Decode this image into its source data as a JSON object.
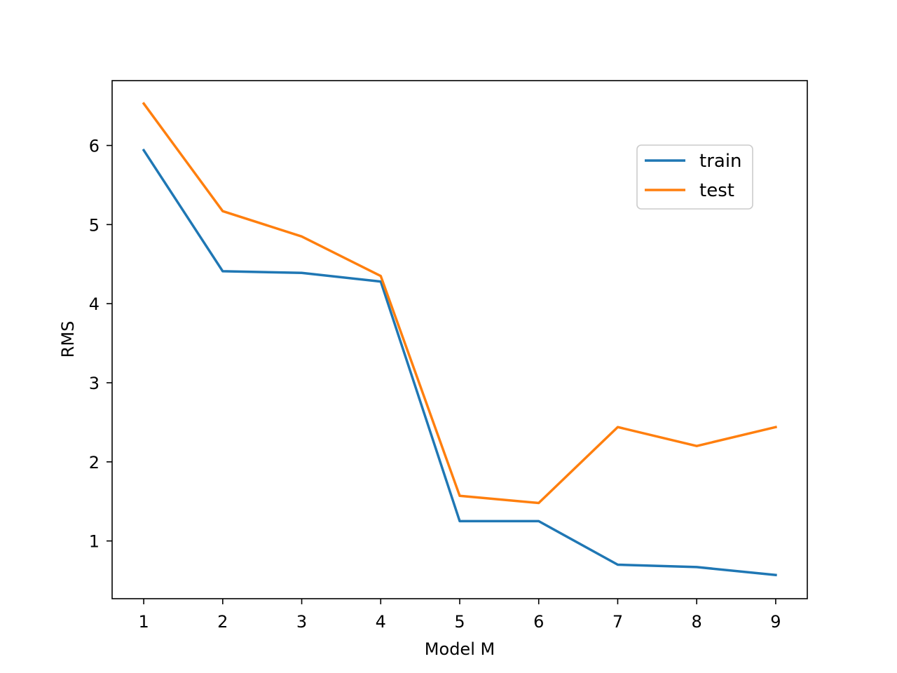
{
  "chart_data": {
    "type": "line",
    "title": "",
    "xlabel": "Model M",
    "ylabel": "RMS",
    "x": [
      1,
      2,
      3,
      4,
      5,
      6,
      7,
      8,
      9
    ],
    "xlim": [
      0.6,
      9.4
    ],
    "ylim": [
      0.27,
      6.82
    ],
    "xticks": [
      1,
      2,
      3,
      4,
      5,
      6,
      7,
      8,
      9
    ],
    "yticks": [
      1,
      2,
      3,
      4,
      5,
      6
    ],
    "grid": false,
    "legend_position": "upper-right",
    "series": [
      {
        "name": "train",
        "color": "#1f77b4",
        "values": [
          5.94,
          4.41,
          4.39,
          4.28,
          1.25,
          1.25,
          0.7,
          0.67,
          0.57
        ]
      },
      {
        "name": "test",
        "color": "#ff7f0e",
        "values": [
          6.53,
          5.17,
          4.85,
          4.35,
          1.57,
          1.48,
          2.44,
          2.2,
          2.44
        ]
      }
    ]
  }
}
